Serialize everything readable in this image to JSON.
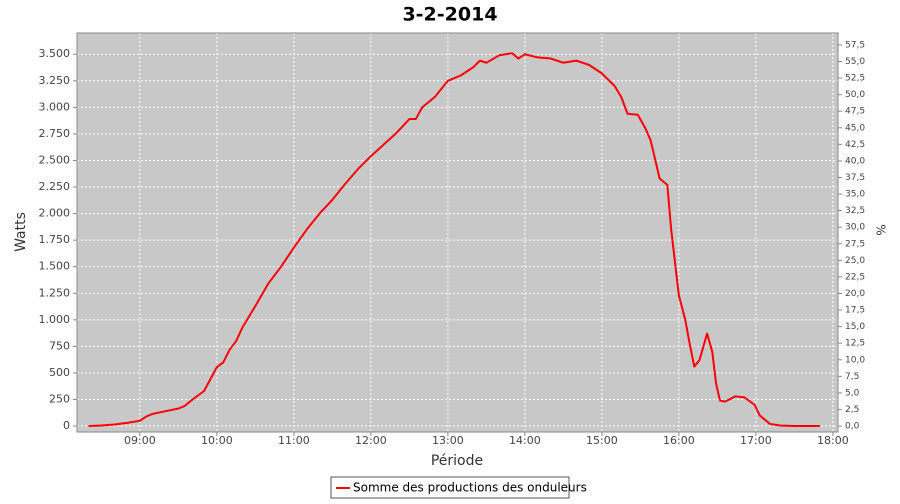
{
  "chart_data": {
    "type": "line",
    "title": "3-2-2014",
    "x_label": "Période",
    "y_label": "Watts",
    "y2_label": "%",
    "x": [
      "08:20",
      "08:30",
      "08:40",
      "08:50",
      "09:00",
      "09:05",
      "09:10",
      "09:20",
      "09:30",
      "09:35",
      "09:40",
      "09:50",
      "10:00",
      "10:05",
      "10:10",
      "10:15",
      "10:20",
      "10:30",
      "10:40",
      "10:50",
      "11:00",
      "11:10",
      "11:20",
      "11:30",
      "11:40",
      "11:50",
      "12:00",
      "12:10",
      "12:20",
      "12:30",
      "12:35",
      "12:40",
      "12:50",
      "13:00",
      "13:10",
      "13:20",
      "13:25",
      "13:30",
      "13:40",
      "13:50",
      "13:55",
      "14:00",
      "14:10",
      "14:20",
      "14:30",
      "14:40",
      "14:50",
      "15:00",
      "15:10",
      "15:15",
      "15:20",
      "15:28",
      "15:34",
      "15:38",
      "15:45",
      "15:51",
      "15:54",
      "16:00",
      "16:05",
      "16:08",
      "16:12",
      "16:16",
      "16:22",
      "16:26",
      "16:29",
      "16:32",
      "16:36",
      "16:44",
      "16:51",
      "16:59",
      "17:03",
      "17:11",
      "17:19",
      "17:30",
      "17:50"
    ],
    "series": [
      {
        "name": "Somme des productions des onduleurs",
        "color": "#ff0000",
        "values": [
          0,
          5,
          15,
          30,
          50,
          90,
          115,
          140,
          165,
          190,
          240,
          330,
          555,
          600,
          720,
          800,
          930,
          1130,
          1340,
          1500,
          1680,
          1850,
          2000,
          2130,
          2280,
          2420,
          2540,
          2650,
          2760,
          2890,
          2890,
          3000,
          3100,
          3250,
          3300,
          3380,
          3440,
          3420,
          3490,
          3510,
          3460,
          3500,
          3470,
          3460,
          3420,
          3440,
          3400,
          3320,
          3200,
          3100,
          2940,
          2930,
          2800,
          2690,
          2330,
          2270,
          1850,
          1230,
          1000,
          800,
          560,
          620,
          870,
          700,
          400,
          240,
          230,
          280,
          270,
          200,
          100,
          20,
          5,
          0,
          0
        ]
      }
    ],
    "xlim": [
      "08:11",
      "18:04"
    ],
    "xticks": [
      "09:00",
      "10:00",
      "11:00",
      "12:00",
      "13:00",
      "14:00",
      "15:00",
      "16:00",
      "17:00",
      "18:00"
    ],
    "ylim": [
      -56,
      3700
    ],
    "yticks": [
      0,
      250,
      500,
      750,
      {
        "value": 1000,
        "label": "1.000"
      },
      {
        "value": 1250,
        "label": "1.250"
      },
      {
        "value": 1500,
        "label": "1.500"
      },
      {
        "value": 1750,
        "label": "1.750"
      },
      {
        "value": 2000,
        "label": "2.000"
      },
      {
        "value": 2250,
        "label": "2.250"
      },
      {
        "value": 2500,
        "label": "2.500"
      },
      {
        "value": 2750,
        "label": "2.750"
      },
      {
        "value": 3000,
        "label": "3.000"
      },
      {
        "value": 3250,
        "label": "3.250"
      },
      {
        "value": 3500,
        "label": "3.500"
      }
    ],
    "y2lim": [
      -0.9,
      59.3
    ],
    "y2ticks": [
      {
        "value": 0,
        "label": "0,0"
      },
      {
        "value": 2.5,
        "label": "2,5"
      },
      {
        "value": 5,
        "label": "5,0"
      },
      {
        "value": 7.5,
        "label": "7,5"
      },
      {
        "value": 10,
        "label": "10,0"
      },
      {
        "value": 12.5,
        "label": "12,5"
      },
      {
        "value": 15,
        "label": "15,0"
      },
      {
        "value": 17.5,
        "label": "17,5"
      },
      {
        "value": 20,
        "label": "20,0"
      },
      {
        "value": 22.5,
        "label": "22,5"
      },
      {
        "value": 25,
        "label": "25,0"
      },
      {
        "value": 27.5,
        "label": "27,5"
      },
      {
        "value": 30,
        "label": "30,0"
      },
      {
        "value": 32.5,
        "label": "32,5"
      },
      {
        "value": 35,
        "label": "35,0"
      },
      {
        "value": 37.5,
        "label": "37,5"
      },
      {
        "value": 40,
        "label": "40,0"
      },
      {
        "value": 42.5,
        "label": "42,5"
      },
      {
        "value": 45,
        "label": "45,0"
      },
      {
        "value": 47.5,
        "label": "47,5"
      },
      {
        "value": 50,
        "label": "50,0"
      },
      {
        "value": 52.5,
        "label": "52,5"
      },
      {
        "value": 55,
        "label": "55,0"
      },
      {
        "value": 57.5,
        "label": "57,5"
      }
    ],
    "grid": true
  }
}
